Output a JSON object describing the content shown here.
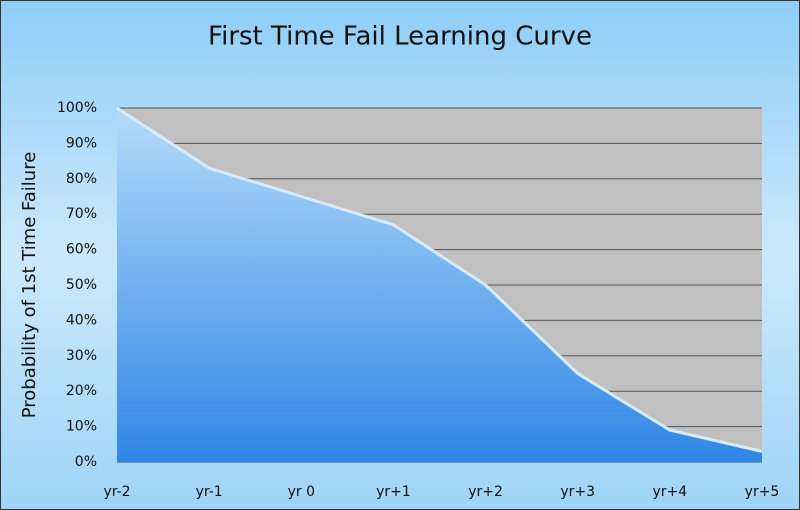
{
  "chart_data": {
    "type": "area",
    "title": "First Time Fail Learning Curve",
    "y_label": "Probability of 1st Time Failure",
    "categories": [
      "yr-2",
      "yr-1",
      "yr 0",
      "yr+1",
      "yr+2",
      "yr+3",
      "yr+4",
      "yr+5"
    ],
    "values": [
      100,
      83,
      75,
      67,
      50,
      25,
      9,
      3
    ],
    "color": "#2f86e6",
    "ylim": [
      0,
      100
    ],
    "yticks": [
      {
        "value": 0,
        "label": "0%"
      },
      {
        "value": 10,
        "label": "10%"
      },
      {
        "value": 20,
        "label": "20%"
      },
      {
        "value": 30,
        "label": "30%"
      },
      {
        "value": 40,
        "label": "40%"
      },
      {
        "value": 50,
        "label": "50%"
      },
      {
        "value": 60,
        "label": "60%"
      },
      {
        "value": 70,
        "label": "70%"
      },
      {
        "value": 80,
        "label": "80%"
      },
      {
        "value": 90,
        "label": "90%"
      },
      {
        "value": 100,
        "label": "100%"
      }
    ],
    "grid": true
  }
}
